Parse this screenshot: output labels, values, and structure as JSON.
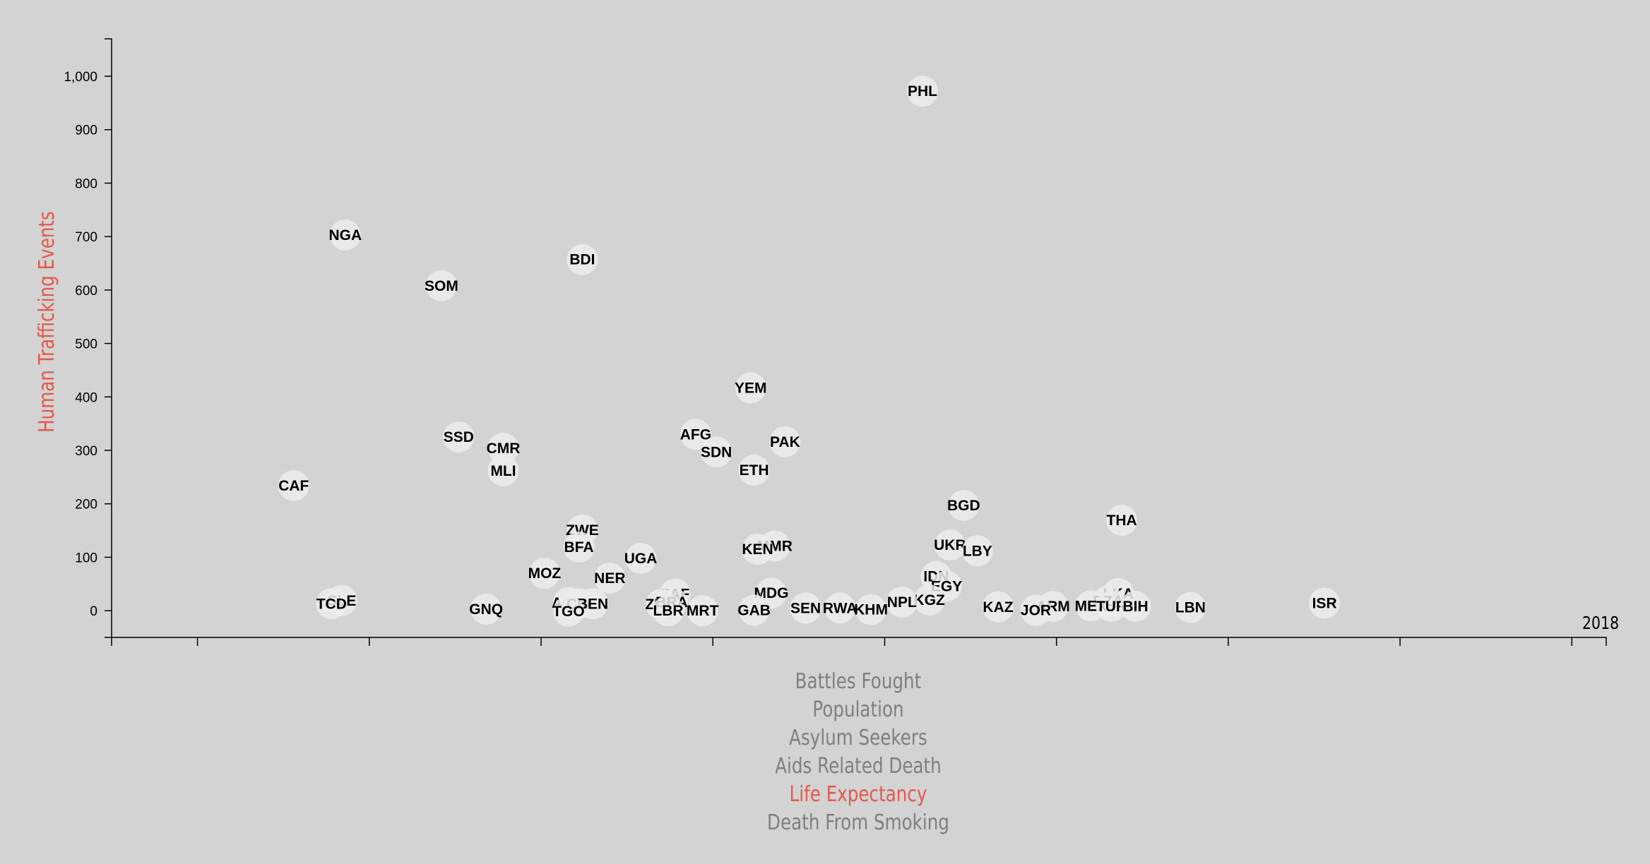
{
  "colors": {
    "background": "#d3d3d3",
    "accent": "#e4594a",
    "inactive": "#7f7f7f",
    "bubble": "#ececec"
  },
  "year": "2018",
  "menu": {
    "items": [
      {
        "label": "Battles Fought",
        "active": false
      },
      {
        "label": "Population",
        "active": false
      },
      {
        "label": "Asylum Seekers",
        "active": false
      },
      {
        "label": "Aids Related Death",
        "active": false
      },
      {
        "label": "Life Expectancy",
        "active": true
      },
      {
        "label": "Death From Smoking",
        "active": false
      }
    ]
  },
  "chart_data": {
    "type": "scatter",
    "title": "",
    "xlabel": "",
    "ylabel": "Human Trafficking Events",
    "xlim": [
      47.5,
      91
    ],
    "ylim": [
      -50,
      1070
    ],
    "x_ticks": [
      50,
      55,
      60,
      65,
      70,
      75,
      80,
      85,
      90
    ],
    "y_ticks": [
      0,
      100,
      200,
      300,
      400,
      500,
      600,
      700,
      800,
      900,
      1000
    ],
    "y_tick_labels": [
      "0",
      "100",
      "200",
      "300",
      "400",
      "500",
      "600",
      "700",
      "800",
      "900",
      "1,000"
    ],
    "grid": false,
    "points": [
      {
        "label": "PHL",
        "x": 71.1,
        "y": 972
      },
      {
        "label": "NGA",
        "x": 54.3,
        "y": 703
      },
      {
        "label": "BDI",
        "x": 61.2,
        "y": 657
      },
      {
        "label": "SOM",
        "x": 57.1,
        "y": 608
      },
      {
        "label": "YEM",
        "x": 66.1,
        "y": 417
      },
      {
        "label": "SSD",
        "x": 57.6,
        "y": 325
      },
      {
        "label": "AFG",
        "x": 64.5,
        "y": 330
      },
      {
        "label": "PAK",
        "x": 67.1,
        "y": 316
      },
      {
        "label": "CMR",
        "x": 58.9,
        "y": 304
      },
      {
        "label": "SDN",
        "x": 65.1,
        "y": 297
      },
      {
        "label": "MLI",
        "x": 58.9,
        "y": 262
      },
      {
        "label": "ETH",
        "x": 66.2,
        "y": 263
      },
      {
        "label": "CAF",
        "x": 52.8,
        "y": 234
      },
      {
        "label": "BGD",
        "x": 72.3,
        "y": 197
      },
      {
        "label": "THA",
        "x": 76.9,
        "y": 169
      },
      {
        "label": "ZWE",
        "x": 61.2,
        "y": 151
      },
      {
        "label": "BFA",
        "x": 61.1,
        "y": 119
      },
      {
        "label": "UKR",
        "x": 71.9,
        "y": 123
      },
      {
        "label": "LBY",
        "x": 72.7,
        "y": 112
      },
      {
        "label": "MMR",
        "x": 66.8,
        "y": 121
      },
      {
        "label": "KEN",
        "x": 66.3,
        "y": 115
      },
      {
        "label": "UGA",
        "x": 62.9,
        "y": 98
      },
      {
        "label": "MOZ",
        "x": 60.1,
        "y": 70
      },
      {
        "label": "NER",
        "x": 62.0,
        "y": 61
      },
      {
        "label": "IDN",
        "x": 71.5,
        "y": 64
      },
      {
        "label": "EGY",
        "x": 71.8,
        "y": 46
      },
      {
        "label": "MDG",
        "x": 66.7,
        "y": 33
      },
      {
        "label": "ZAF",
        "x": 63.9,
        "y": 31
      },
      {
        "label": "LKA",
        "x": 76.8,
        "y": 32
      },
      {
        "label": "KGZ",
        "x": 71.3,
        "y": 20
      },
      {
        "label": "NPL",
        "x": 70.5,
        "y": 16
      },
      {
        "label": "SLE",
        "x": 54.2,
        "y": 19
      },
      {
        "label": "TCD",
        "x": 53.9,
        "y": 13
      },
      {
        "label": "ISR",
        "x": 82.8,
        "y": 14
      },
      {
        "label": "ZMB",
        "x": 63.5,
        "y": 12
      },
      {
        "label": "BRA",
        "x": 63.8,
        "y": 16
      },
      {
        "label": "AGO",
        "x": 60.8,
        "y": 15
      },
      {
        "label": "CIV",
        "x": 61.1,
        "y": 13
      },
      {
        "label": "BEN",
        "x": 61.5,
        "y": 13
      },
      {
        "label": "DZA",
        "x": 76.5,
        "y": 18
      },
      {
        "label": "MEX",
        "x": 76.0,
        "y": 9
      },
      {
        "label": "TUR",
        "x": 76.6,
        "y": 8
      },
      {
        "label": "BIH",
        "x": 77.3,
        "y": 8
      },
      {
        "label": "ARM",
        "x": 74.9,
        "y": 8
      },
      {
        "label": "LBN",
        "x": 78.9,
        "y": 6
      },
      {
        "label": "KAZ",
        "x": 73.3,
        "y": 7
      },
      {
        "label": "SEN",
        "x": 67.7,
        "y": 5
      },
      {
        "label": "RWA",
        "x": 68.7,
        "y": 5
      },
      {
        "label": "KHM",
        "x": 69.6,
        "y": 2
      },
      {
        "label": "GAB",
        "x": 66.2,
        "y": 1
      },
      {
        "label": "JOR",
        "x": 74.4,
        "y": 1
      },
      {
        "label": "GNQ",
        "x": 58.4,
        "y": 3
      },
      {
        "label": "TGO",
        "x": 60.8,
        "y": -1
      },
      {
        "label": "LBR",
        "x": 63.7,
        "y": 0
      },
      {
        "label": "MRT",
        "x": 64.7,
        "y": 0
      }
    ]
  }
}
